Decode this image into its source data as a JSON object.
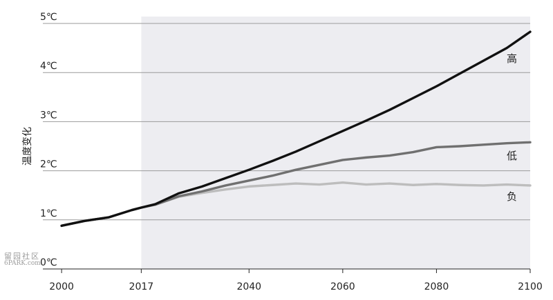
{
  "chart_data": {
    "type": "line",
    "title": "",
    "xlabel": "",
    "ylabel": "温度变化",
    "xlim": [
      1996,
      2100
    ],
    "ylim": [
      0,
      5
    ],
    "x_ticks": [
      2000,
      2017,
      2040,
      2060,
      2080,
      2100
    ],
    "y_ticks": [
      {
        "value": 0,
        "label": "0℃"
      },
      {
        "value": 1,
        "label": "1℃"
      },
      {
        "value": 2,
        "label": "2℃"
      },
      {
        "value": 3,
        "label": "3℃"
      },
      {
        "value": 4,
        "label": "4℃"
      },
      {
        "value": 5,
        "label": "5℃"
      }
    ],
    "grid": "horizontal",
    "shaded_region": {
      "x_from": 2017,
      "x_to": 2100
    },
    "series": [
      {
        "name": "负",
        "color": "#bdbdbd",
        "x": [
          2000,
          2005,
          2010,
          2015,
          2017,
          2020,
          2025,
          2030,
          2035,
          2040,
          2045,
          2050,
          2055,
          2060,
          2065,
          2070,
          2075,
          2080,
          2085,
          2090,
          2095,
          2100
        ],
        "values": [
          0.88,
          0.98,
          1.05,
          1.2,
          1.25,
          1.31,
          1.47,
          1.55,
          1.62,
          1.68,
          1.71,
          1.74,
          1.72,
          1.76,
          1.72,
          1.74,
          1.71,
          1.73,
          1.71,
          1.7,
          1.72,
          1.7
        ]
      },
      {
        "name": "低",
        "color": "#707070",
        "x": [
          2000,
          2005,
          2010,
          2015,
          2017,
          2020,
          2025,
          2030,
          2035,
          2040,
          2045,
          2050,
          2055,
          2060,
          2065,
          2070,
          2075,
          2080,
          2085,
          2090,
          2095,
          2100
        ],
        "values": [
          0.88,
          0.98,
          1.05,
          1.2,
          1.25,
          1.31,
          1.48,
          1.58,
          1.7,
          1.8,
          1.9,
          2.02,
          2.12,
          2.22,
          2.27,
          2.31,
          2.38,
          2.48,
          2.5,
          2.53,
          2.56,
          2.58
        ]
      },
      {
        "name": "高",
        "color": "#111111",
        "x": [
          2000,
          2005,
          2010,
          2015,
          2017,
          2020,
          2025,
          2030,
          2035,
          2040,
          2045,
          2050,
          2055,
          2060,
          2065,
          2070,
          2075,
          2080,
          2085,
          2090,
          2095,
          2100
        ],
        "values": [
          0.88,
          0.98,
          1.05,
          1.2,
          1.25,
          1.32,
          1.54,
          1.68,
          1.85,
          2.02,
          2.2,
          2.39,
          2.6,
          2.81,
          3.02,
          3.24,
          3.48,
          3.72,
          3.98,
          4.24,
          4.5,
          4.83
        ]
      }
    ]
  },
  "watermark": {
    "glyphs": "留园社区",
    "site": "6PARK.com"
  }
}
